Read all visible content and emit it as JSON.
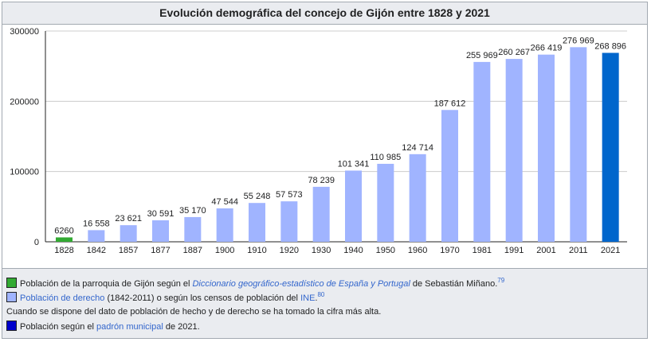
{
  "title": "Evolución demográfica del concejo de Gijón entre 1828 y 2021",
  "chart_data": {
    "type": "bar",
    "title": "Evolución demográfica del concejo de Gijón entre 1828 y 2021",
    "xlabel": "",
    "ylabel": "",
    "ylim": [
      0,
      300000
    ],
    "yticks": [
      "0",
      "100000",
      "200000",
      "300000"
    ],
    "grid": true,
    "categories": [
      "1828",
      "1842",
      "1857",
      "1877",
      "1887",
      "1900",
      "1910",
      "1920",
      "1930",
      "1940",
      "1950",
      "1960",
      "1970",
      "1981",
      "1991",
      "2001",
      "2011",
      "2021"
    ],
    "values": [
      6260,
      16558,
      23621,
      30591,
      35170,
      47544,
      55248,
      57573,
      78239,
      101341,
      110985,
      124714,
      187612,
      255969,
      260267,
      266419,
      276969,
      268896
    ],
    "value_labels": [
      "6260",
      "16 558",
      "23 621",
      "30 591",
      "35 170",
      "47 544",
      "55 248",
      "57 573",
      "78 239",
      "101 341",
      "110 985",
      "124 714",
      "187 612",
      "255 969",
      "260 267",
      "266 419",
      "276 969",
      "268 896"
    ],
    "bar_colors": [
      "#33aa33",
      "#a0b4ff",
      "#a0b4ff",
      "#a0b4ff",
      "#a0b4ff",
      "#a0b4ff",
      "#a0b4ff",
      "#a0b4ff",
      "#a0b4ff",
      "#a0b4ff",
      "#a0b4ff",
      "#a0b4ff",
      "#a0b4ff",
      "#a0b4ff",
      "#a0b4ff",
      "#a0b4ff",
      "#a0b4ff",
      "#0066cc"
    ]
  },
  "legend": {
    "row1": {
      "color": "#33aa33",
      "text_before": "Población de la parroquia de Gijón según el ",
      "link_text": "Diccionario geográfico-estadístico de España y Portugal",
      "text_after": " de Sebastián Miñano.",
      "ref": "79"
    },
    "row2": {
      "color": "#a0b4ff",
      "link_text": "Población de derecho",
      "text_middle": " (1842-2011) o según los censos de población del ",
      "link2_text": "INE",
      "text_after": ".",
      "ref": "80"
    },
    "row3": {
      "text": "Cuando se dispone del dato de población de hecho y de derecho se ha tomado la cifra más alta."
    },
    "row4": {
      "color": "#0000cc",
      "text_before": "Población según el ",
      "link_text": "padrón municipal",
      "text_after": " de 2021."
    }
  }
}
